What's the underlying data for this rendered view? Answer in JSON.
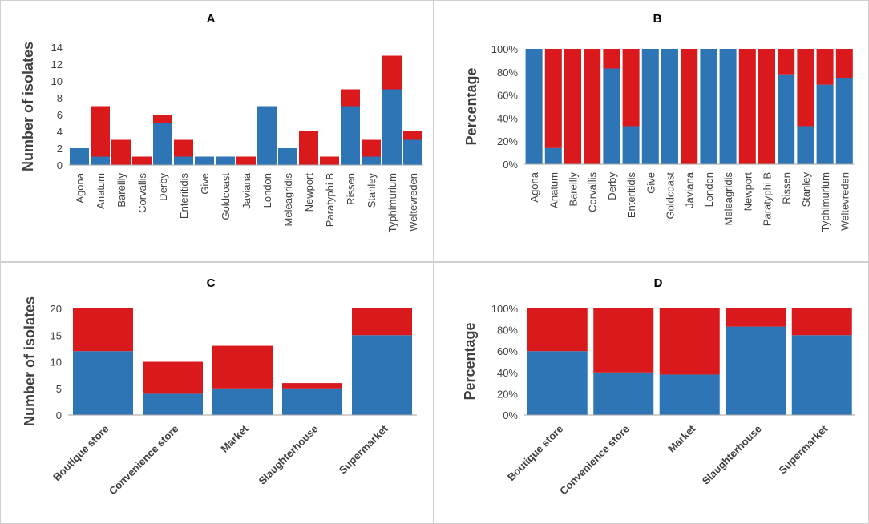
{
  "colors": {
    "blue": "#2e75b6",
    "red": "#d9191c",
    "axis": "#a6a6a6"
  },
  "chart_data": [
    {
      "panel": "A",
      "type": "bar",
      "stacked": true,
      "title": "A",
      "ylabel": "Number of isolates",
      "xlabel": "",
      "ylim": [
        0,
        14
      ],
      "yticks": [
        "0",
        "2",
        "4",
        "6",
        "8",
        "10",
        "12",
        "14"
      ],
      "ytick_values": [
        0,
        2,
        4,
        6,
        8,
        10,
        12,
        14
      ],
      "categories": [
        "Agona",
        "Anatum",
        "Bareilly",
        "Corvallis",
        "Derby",
        "Enteritidis",
        "Give",
        "Goldcoast",
        "Javiana",
        "London",
        "Meleagridis",
        "Newport",
        "Paratyphi B",
        "Rissen",
        "Stanley",
        "Typhimurium",
        "Weltevreden"
      ],
      "series": [
        {
          "name": "blue",
          "values": [
            2,
            1,
            0,
            0,
            5,
            1,
            1,
            1,
            0,
            7,
            2,
            0,
            0,
            7,
            1,
            9,
            3
          ]
        },
        {
          "name": "red",
          "values": [
            0,
            6,
            3,
            1,
            1,
            2,
            0,
            0,
            1,
            0,
            0,
            4,
            1,
            2,
            2,
            4,
            1
          ]
        }
      ]
    },
    {
      "panel": "B",
      "type": "bar",
      "stacked": true,
      "percent": true,
      "title": "B",
      "ylabel": "Percentage",
      "xlabel": "",
      "ylim": [
        0,
        100
      ],
      "yticks": [
        "0%",
        "20%",
        "40%",
        "60%",
        "80%",
        "100%"
      ],
      "ytick_values": [
        0,
        20,
        40,
        60,
        80,
        100
      ],
      "categories": [
        "Agona",
        "Anatum",
        "Bareilly",
        "Corvallis",
        "Derby",
        "Enteritidis",
        "Give",
        "Goldcoast",
        "Javiana",
        "London",
        "Meleagridis",
        "Newport",
        "Paratyphi B",
        "Rissen",
        "Stanley",
        "Typhimurium",
        "Weltevreden"
      ],
      "series": [
        {
          "name": "blue",
          "values": [
            100,
            14,
            0,
            0,
            83,
            33,
            100,
            100,
            0,
            100,
            100,
            0,
            0,
            78,
            33,
            69,
            75
          ]
        },
        {
          "name": "red",
          "values": [
            0,
            86,
            100,
            100,
            17,
            67,
            0,
            0,
            100,
            0,
            0,
            100,
            100,
            22,
            67,
            31,
            25
          ]
        }
      ]
    },
    {
      "panel": "C",
      "type": "bar",
      "stacked": true,
      "title": "C",
      "ylabel": "Number of isolates",
      "xlabel": "",
      "ylim": [
        0,
        20
      ],
      "yticks": [
        "0",
        "5",
        "10",
        "15",
        "20"
      ],
      "ytick_values": [
        0,
        5,
        10,
        15,
        20
      ],
      "categories": [
        "Boutique store",
        "Convenience store",
        "Market",
        "Slaughterhouse",
        "Supermarket"
      ],
      "series": [
        {
          "name": "blue",
          "values": [
            12,
            4,
            5,
            5,
            15
          ]
        },
        {
          "name": "red",
          "values": [
            8,
            6,
            8,
            1,
            5
          ]
        }
      ]
    },
    {
      "panel": "D",
      "type": "bar",
      "stacked": true,
      "percent": true,
      "title": "D",
      "ylabel": "Percentage",
      "xlabel": "",
      "ylim": [
        0,
        100
      ],
      "yticks": [
        "0%",
        "20%",
        "40%",
        "60%",
        "80%",
        "100%"
      ],
      "ytick_values": [
        0,
        20,
        40,
        60,
        80,
        100
      ],
      "categories": [
        "Boutique store",
        "Convenience store",
        "Market",
        "Slaughterhouse",
        "Supermarket"
      ],
      "series": [
        {
          "name": "blue",
          "values": [
            60,
            40,
            38,
            83,
            75
          ]
        },
        {
          "name": "red",
          "values": [
            40,
            60,
            62,
            17,
            25
          ]
        }
      ]
    }
  ]
}
